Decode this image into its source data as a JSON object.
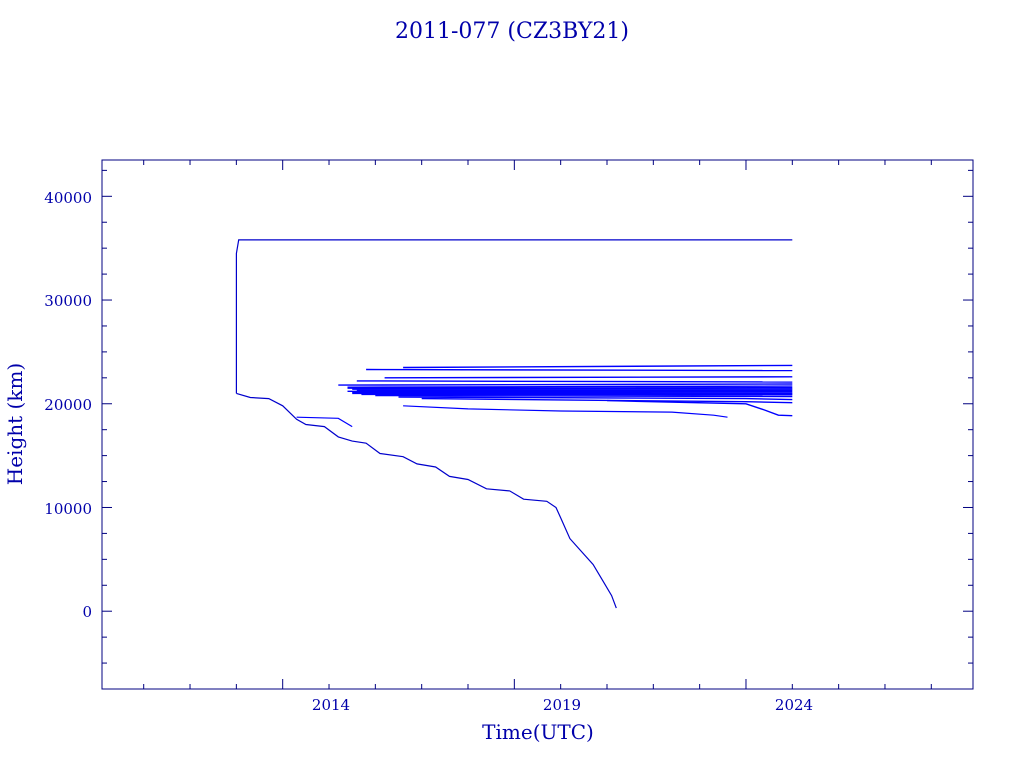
{
  "chart_data": {
    "type": "line",
    "title": "2011-077 (CZ3BY21)",
    "xlabel": "Time(UTC)",
    "ylabel": "Height (km)",
    "xlim": [
      2010.1,
      2028.9
    ],
    "ylim": [
      -7500,
      43500
    ],
    "x_ticks": [
      "2014",
      "2019",
      "2024"
    ],
    "y_ticks": [
      "0",
      "10000",
      "20000",
      "30000",
      "40000"
    ],
    "grid": false,
    "legend": "none",
    "colors": {
      "axes": "#000080",
      "data": "#0000ff",
      "text": "#0000aa"
    },
    "series": [
      {
        "points": [
          [
            2013.0,
            21000
          ],
          [
            2013.3,
            20600
          ],
          [
            2013.7,
            20500
          ],
          [
            2014.0,
            19800
          ],
          [
            2014.3,
            18500
          ],
          [
            2014.5,
            18000
          ],
          [
            2014.9,
            17800
          ],
          [
            2015.2,
            16800
          ],
          [
            2015.5,
            16400
          ],
          [
            2015.8,
            16200
          ],
          [
            2016.1,
            15200
          ],
          [
            2016.6,
            14900
          ],
          [
            2016.9,
            14200
          ],
          [
            2017.3,
            13900
          ],
          [
            2017.6,
            13000
          ],
          [
            2018.0,
            12700
          ],
          [
            2018.4,
            11800
          ],
          [
            2018.9,
            11600
          ],
          [
            2019.2,
            10800
          ],
          [
            2019.7,
            10600
          ],
          [
            2019.9,
            10000
          ],
          [
            2020.0,
            9000
          ],
          [
            2020.2,
            7000
          ],
          [
            2020.4,
            6000
          ],
          [
            2020.7,
            4500
          ],
          [
            2020.9,
            3000
          ],
          [
            2021.1,
            1500
          ],
          [
            2021.2,
            300
          ]
        ]
      },
      {
        "points": [
          [
            2013.0,
            21000
          ],
          [
            2013.0,
            34500
          ],
          [
            2013.05,
            35800
          ],
          [
            2025.0,
            35800
          ]
        ]
      },
      {
        "points": [
          [
            2014.3,
            18700
          ],
          [
            2015.2,
            18600
          ],
          [
            2015.5,
            17800
          ]
        ]
      },
      {
        "points": [
          [
            2016.6,
            19800
          ],
          [
            2018.0,
            19500
          ],
          [
            2020.0,
            19300
          ],
          [
            2022.4,
            19200
          ],
          [
            2023.3,
            18900
          ],
          [
            2023.6,
            18700
          ]
        ]
      },
      {
        "points": [
          [
            2015.8,
            23300
          ],
          [
            2025.0,
            23200
          ]
        ]
      },
      {
        "points": [
          [
            2016.6,
            23500
          ],
          [
            2025.0,
            23700
          ]
        ]
      },
      {
        "points": [
          [
            2016.2,
            22500
          ],
          [
            2025.0,
            22600
          ]
        ]
      },
      {
        "points": [
          [
            2015.6,
            22200
          ],
          [
            2025.0,
            22100
          ]
        ]
      },
      {
        "points": [
          [
            2015.2,
            21800
          ],
          [
            2025.0,
            21900
          ]
        ]
      },
      {
        "points": [
          [
            2015.4,
            21600
          ],
          [
            2025.0,
            21700
          ]
        ]
      },
      {
        "points": [
          [
            2015.4,
            21500
          ],
          [
            2025.0,
            21550
          ]
        ]
      },
      {
        "points": [
          [
            2015.5,
            21400
          ],
          [
            2025.0,
            21420
          ]
        ]
      },
      {
        "points": [
          [
            2015.6,
            21300
          ],
          [
            2025.0,
            21300
          ]
        ]
      },
      {
        "points": [
          [
            2015.4,
            21200
          ],
          [
            2025.0,
            21180
          ]
        ]
      },
      {
        "points": [
          [
            2015.5,
            21100
          ],
          [
            2025.0,
            21050
          ]
        ]
      },
      {
        "points": [
          [
            2015.5,
            21000
          ],
          [
            2025.0,
            20950
          ]
        ]
      },
      {
        "points": [
          [
            2015.7,
            20900
          ],
          [
            2025.0,
            20850
          ]
        ]
      },
      {
        "points": [
          [
            2016.0,
            20800
          ],
          [
            2025.0,
            20700
          ]
        ]
      },
      {
        "points": [
          [
            2016.5,
            20650
          ],
          [
            2024.0,
            20500
          ],
          [
            2025.0,
            20400
          ]
        ]
      },
      {
        "points": [
          [
            2017.0,
            20500
          ],
          [
            2024.0,
            20200
          ],
          [
            2025.0,
            20100
          ]
        ]
      },
      {
        "points": [
          [
            2021.0,
            20300
          ],
          [
            2024.0,
            20000
          ],
          [
            2024.4,
            19400
          ],
          [
            2024.7,
            18900
          ],
          [
            2025.0,
            18850
          ]
        ]
      }
    ]
  }
}
